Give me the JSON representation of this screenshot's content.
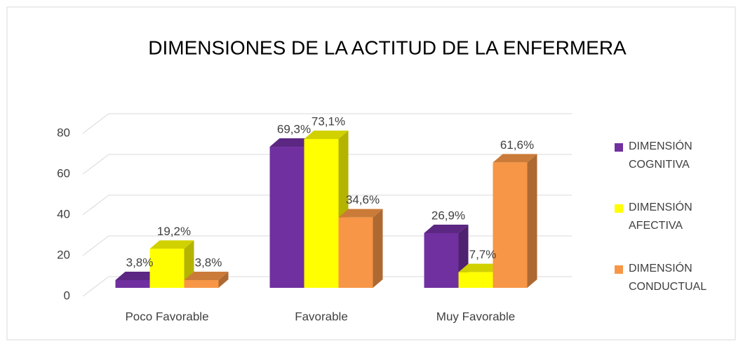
{
  "chart_data": {
    "type": "bar3d",
    "title": "DIMENSIONES DE LA ACTITUD DE LA ENFERMERA",
    "categories": [
      "Poco Favorable",
      "Favorable",
      "Muy Favorable"
    ],
    "series": [
      {
        "name": "DIMENSIÓN COGNITIVA",
        "color": "#7030a0",
        "values": [
          3.8,
          69.3,
          26.9
        ],
        "value_labels": [
          "3,8%",
          "69,3%",
          "26,9%"
        ]
      },
      {
        "name": "DIMENSIÓN AFECTIVA",
        "color": "#ffff00",
        "values": [
          19.2,
          73.1,
          7.7
        ],
        "value_labels": [
          "19,2%",
          "73,1%",
          "7,7%"
        ]
      },
      {
        "name": "DIMENSIÓN CONDUCTUAL",
        "color": "#f79646",
        "values": [
          3.8,
          34.6,
          61.6
        ],
        "value_labels": [
          "3,8%",
          "34,6%",
          "61,6%"
        ]
      }
    ],
    "ylim": [
      0,
      80
    ],
    "yticks": [
      0,
      20,
      40,
      60,
      80
    ],
    "grid": true,
    "legend": "right"
  }
}
